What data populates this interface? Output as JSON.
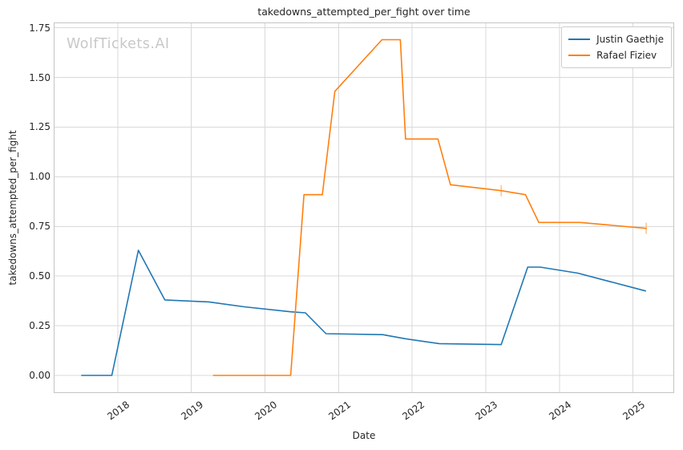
{
  "watermark": "WolfTickets.AI",
  "colors": {
    "series_blue": "#1f77b4",
    "series_orange": "#ff7f0e",
    "marker_light_orange": "#ffc58d",
    "grid": "#d9d9d9",
    "spine": "#c4c4c4",
    "text": "#262626",
    "watermark": "#c8c8c8",
    "background": "#ffffff"
  },
  "chart_data": {
    "type": "line",
    "title": "takedowns_attempted_per_fight over time",
    "xlabel": "Date",
    "ylabel": "takedowns_attempted_per_fight",
    "grid": true,
    "legend_position": "upper right",
    "xlim": [
      2017.13,
      2025.56
    ],
    "ylim": [
      -0.089,
      1.777
    ],
    "x_ticks": [
      2018,
      2019,
      2020,
      2021,
      2022,
      2023,
      2024,
      2025
    ],
    "x_tick_labels": [
      "2018",
      "2019",
      "2020",
      "2021",
      "2022",
      "2023",
      "2024",
      "2025"
    ],
    "y_ticks": [
      0.0,
      0.25,
      0.5,
      0.75,
      1.0,
      1.25,
      1.5,
      1.75
    ],
    "y_tick_labels": [
      "0.00",
      "0.25",
      "0.50",
      "0.75",
      "1.00",
      "1.25",
      "1.50",
      "1.75"
    ],
    "series": [
      {
        "name": "Justin Gaethje",
        "color": "#1f77b4",
        "points": [
          [
            2017.51,
            0.0
          ],
          [
            2017.92,
            0.0
          ],
          [
            2018.28,
            0.63
          ],
          [
            2018.64,
            0.38
          ],
          [
            2019.24,
            0.37
          ],
          [
            2019.72,
            0.345
          ],
          [
            2020.35,
            0.32
          ],
          [
            2020.55,
            0.315
          ],
          [
            2020.83,
            0.21
          ],
          [
            2021.6,
            0.205
          ],
          [
            2021.9,
            0.185
          ],
          [
            2022.37,
            0.16
          ],
          [
            2023.21,
            0.155
          ],
          [
            2023.57,
            0.545
          ],
          [
            2023.74,
            0.545
          ],
          [
            2024.25,
            0.515
          ],
          [
            2025.17,
            0.425
          ]
        ],
        "markers": []
      },
      {
        "name": "Rafael Fiziev",
        "color": "#ff7f0e",
        "points": [
          [
            2019.3,
            0.0
          ],
          [
            2020.35,
            0.0
          ],
          [
            2020.53,
            0.91
          ],
          [
            2020.78,
            0.91
          ],
          [
            2020.95,
            1.43
          ],
          [
            2021.59,
            1.69
          ],
          [
            2021.84,
            1.69
          ],
          [
            2021.91,
            1.19
          ],
          [
            2022.35,
            1.19
          ],
          [
            2022.52,
            0.96
          ],
          [
            2023.21,
            0.93
          ],
          [
            2023.54,
            0.91
          ],
          [
            2023.72,
            0.77
          ],
          [
            2024.28,
            0.77
          ],
          [
            2025.18,
            0.74
          ]
        ],
        "markers": [
          [
            2023.21,
            0.93
          ],
          [
            2025.18,
            0.74
          ]
        ]
      }
    ]
  }
}
